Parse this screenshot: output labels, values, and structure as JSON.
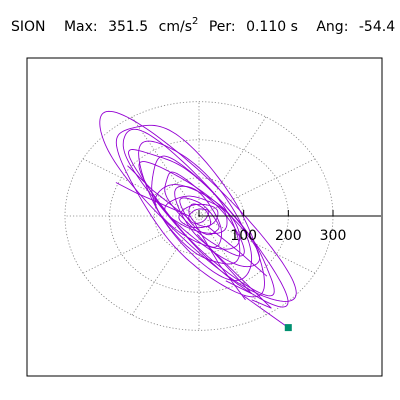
{
  "header": {
    "station": "SION",
    "max_label": "Max:",
    "max_value": "351.5",
    "max_unit": "cm/s",
    "max_unit_exp": "2",
    "per_label": "Per:",
    "per_value": "0.110 s",
    "ang_label": "Ang:",
    "ang_value": "-54.4"
  },
  "colors": {
    "trace": "#9400d3",
    "endpoint": "#009070",
    "grid": "#808080",
    "axis": "#000000",
    "frame": "#000000"
  },
  "chart_data": {
    "type": "scatter",
    "subtype": "polar-hodogram",
    "axis_ticks": [
      {
        "value": 100,
        "label": "100"
      },
      {
        "value": 200,
        "label": "200"
      },
      {
        "value": 300,
        "label": "300"
      }
    ],
    "ring_values": [
      100,
      200,
      300
    ],
    "ring_aspect": 0.853,
    "spoke_angles_deg": [
      30,
      60,
      90,
      120,
      150,
      180,
      210,
      240,
      270,
      300,
      330
    ],
    "grid": true,
    "peak_angle_deg": -54.4,
    "endpoint": {
      "x": 200,
      "y": -293
    },
    "loops": [
      {
        "a": 322,
        "b": 76,
        "phi": -49,
        "cx": -8,
        "cy": 20
      },
      {
        "a": 288,
        "b": 62,
        "phi": -52,
        "cx": 5,
        "cy": 0
      },
      {
        "a": 262,
        "b": 92,
        "phi": -56,
        "cx": -18,
        "cy": 28
      },
      {
        "a": 240,
        "b": 56,
        "phi": -50,
        "cx": 12,
        "cy": -8
      },
      {
        "a": 210,
        "b": 72,
        "phi": -58,
        "cx": -6,
        "cy": 12
      },
      {
        "a": 186,
        "b": 48,
        "phi": -46,
        "cx": 4,
        "cy": -2
      },
      {
        "a": 158,
        "b": 64,
        "phi": -60,
        "cx": -12,
        "cy": 8
      },
      {
        "a": 132,
        "b": 40,
        "phi": -52,
        "cx": 6,
        "cy": 6
      },
      {
        "a": 112,
        "b": 58,
        "phi": -40,
        "cx": -4,
        "cy": -2
      },
      {
        "a": 88,
        "b": 36,
        "phi": -62,
        "cx": 0,
        "cy": 2
      },
      {
        "a": 72,
        "b": 44,
        "phi": -20,
        "cx": -2,
        "cy": 4
      },
      {
        "a": 58,
        "b": 26,
        "phi": -48,
        "cx": 2,
        "cy": -2
      },
      {
        "a": 44,
        "b": 30,
        "phi": 10,
        "cx": 0,
        "cy": 0
      },
      {
        "a": 34,
        "b": 18,
        "phi": -55,
        "cx": 1,
        "cy": 1
      },
      {
        "a": 24,
        "b": 16,
        "phi": 30,
        "cx": -1,
        "cy": 0
      }
    ],
    "strokes": [
      {
        "x": [
          -20,
          -104,
          -160
        ],
        "y": [
          -10,
          68,
          132
        ]
      },
      {
        "x": [
          -4,
          118,
          60
        ],
        "y": [
          -48,
          -204,
          -170
        ]
      },
      {
        "x": [
          12,
          162,
          118
        ],
        "y": [
          -70,
          -242,
          -220
        ]
      },
      {
        "x": [
          -18,
          -140,
          -186
        ],
        "y": [
          -2,
          60,
          88
        ]
      },
      {
        "x": [
          18,
          92,
          152
        ],
        "y": [
          -26,
          -96,
          -158
        ]
      },
      {
        "x": [
          -10,
          46,
          104
        ],
        "y": [
          -18,
          -128,
          -220
        ]
      },
      {
        "x": [
          100,
          200
        ],
        "y": [
          -210,
          -293
        ]
      }
    ]
  }
}
